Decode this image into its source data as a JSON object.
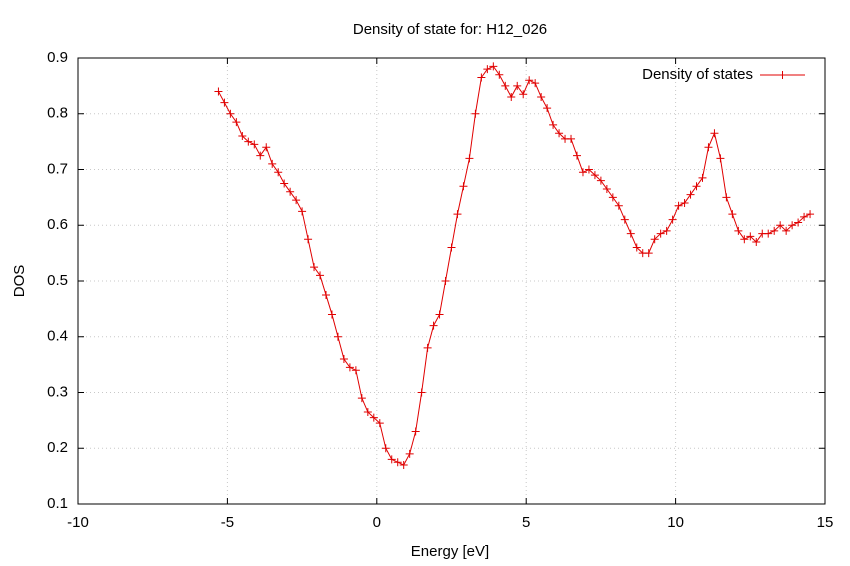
{
  "chart_data": {
    "type": "line",
    "title": "Density of state for: H12_026",
    "x_label": "Energy [eV]",
    "y_label": "DOS",
    "x": [
      -5.3,
      -5.1,
      -4.9,
      -4.7,
      -4.5,
      -4.3,
      -4.1,
      -3.9,
      -3.7,
      -3.5,
      -3.3,
      -3.1,
      -2.9,
      -2.7,
      -2.5,
      -2.3,
      -2.1,
      -1.9,
      -1.7,
      -1.5,
      -1.3,
      -1.1,
      -0.9,
      -0.7,
      -0.5,
      -0.3,
      -0.1,
      0.1,
      0.3,
      0.5,
      0.7,
      0.9,
      1.1,
      1.3,
      1.5,
      1.7,
      1.9,
      2.1,
      2.3,
      2.5,
      2.7,
      2.9,
      3.1,
      3.3,
      3.5,
      3.7,
      3.9,
      4.1,
      4.3,
      4.5,
      4.7,
      4.9,
      5.1,
      5.3,
      5.5,
      5.7,
      5.9,
      6.1,
      6.3,
      6.5,
      6.7,
      6.9,
      7.1,
      7.3,
      7.5,
      7.7,
      7.9,
      8.1,
      8.3,
      8.5,
      8.7,
      8.9,
      9.1,
      9.3,
      9.5,
      9.7,
      9.9,
      10.1,
      10.3,
      10.5,
      10.7,
      10.9,
      11.1,
      11.3,
      11.5,
      11.7,
      11.9,
      12.1,
      12.3,
      12.5,
      12.7,
      12.9,
      13.1,
      13.3,
      13.5,
      13.7,
      13.9,
      14.1,
      14.3,
      14.5
    ],
    "series": [
      {
        "name": "Density of states",
        "color": "#e00000",
        "values": [
          0.84,
          0.82,
          0.8,
          0.785,
          0.76,
          0.75,
          0.745,
          0.725,
          0.74,
          0.71,
          0.695,
          0.675,
          0.66,
          0.645,
          0.625,
          0.575,
          0.525,
          0.51,
          0.475,
          0.44,
          0.4,
          0.36,
          0.345,
          0.34,
          0.29,
          0.265,
          0.255,
          0.245,
          0.2,
          0.18,
          0.175,
          0.17,
          0.19,
          0.23,
          0.3,
          0.38,
          0.42,
          0.44,
          0.5,
          0.56,
          0.62,
          0.67,
          0.72,
          0.8,
          0.865,
          0.88,
          0.885,
          0.87,
          0.85,
          0.83,
          0.85,
          0.835,
          0.86,
          0.855,
          0.83,
          0.81,
          0.78,
          0.765,
          0.755,
          0.755,
          0.725,
          0.695,
          0.7,
          0.69,
          0.68,
          0.665,
          0.65,
          0.635,
          0.61,
          0.585,
          0.56,
          0.55,
          0.55,
          0.575,
          0.585,
          0.59,
          0.61,
          0.635,
          0.64,
          0.655,
          0.67,
          0.685,
          0.74,
          0.765,
          0.72,
          0.65,
          0.62,
          0.59,
          0.575,
          0.58,
          0.57,
          0.585,
          0.585,
          0.59,
          0.6,
          0.59,
          0.6,
          0.605,
          0.615,
          0.62
        ]
      }
    ],
    "xlim": [
      -10,
      15
    ],
    "xticks": [
      -10,
      -5,
      0,
      5,
      10,
      15
    ],
    "ylim": [
      0.1,
      0.9
    ],
    "yticks": [
      0.1,
      0.2,
      0.3,
      0.4,
      0.5,
      0.6,
      0.7,
      0.8,
      0.9
    ],
    "grid": true,
    "legend": "top-right"
  }
}
